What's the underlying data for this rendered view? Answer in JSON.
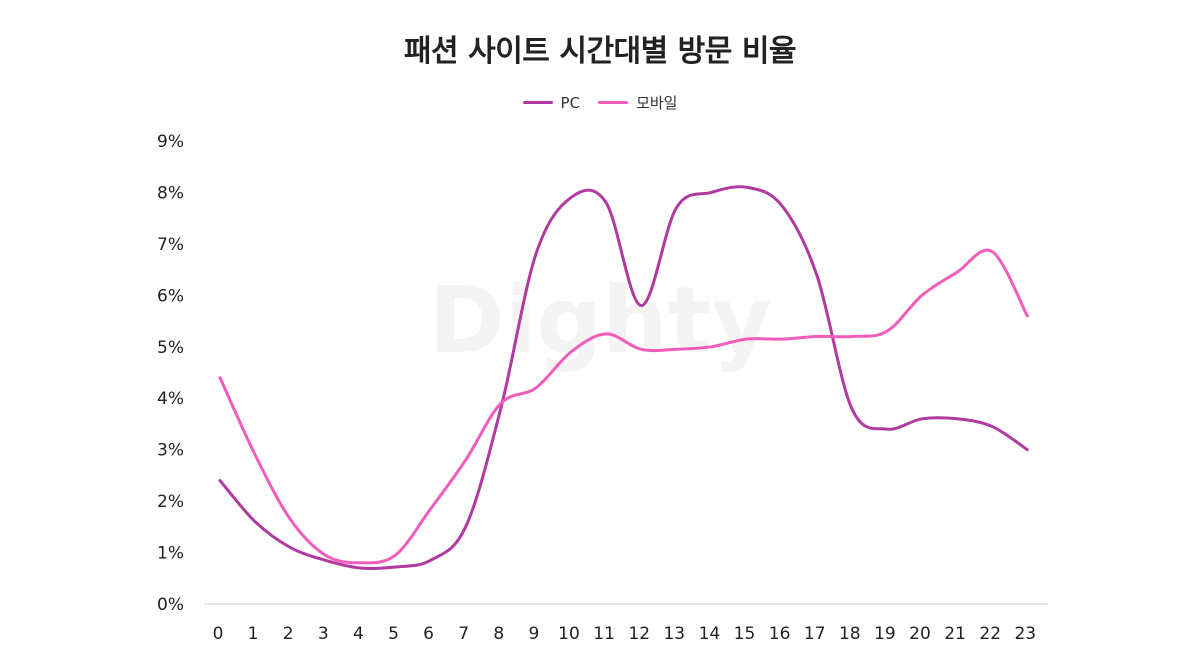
{
  "watermark": "Dighty",
  "chart_data": {
    "type": "line",
    "title": "패션 사이트 시간대별 방문 비율",
    "categories": [
      "0",
      "1",
      "2",
      "3",
      "4",
      "5",
      "6",
      "7",
      "8",
      "9",
      "10",
      "11",
      "12",
      "13",
      "14",
      "15",
      "16",
      "17",
      "18",
      "19",
      "20",
      "21",
      "22",
      "23"
    ],
    "y_ticks": [
      "0%",
      "1%",
      "2%",
      "3%",
      "4%",
      "5%",
      "6%",
      "7%",
      "8%",
      "9%"
    ],
    "ylim": [
      0,
      9
    ],
    "grid": false,
    "legend_position": "top",
    "series": [
      {
        "name": "PC",
        "color": "#b03a9f",
        "values": [
          2.4,
          1.6,
          1.1,
          0.85,
          0.7,
          0.72,
          0.85,
          1.5,
          3.8,
          6.8,
          7.9,
          7.8,
          5.8,
          7.7,
          8.0,
          8.1,
          7.75,
          6.4,
          3.8,
          3.4,
          3.6,
          3.6,
          3.45,
          3.0
        ]
      },
      {
        "name": "모바일",
        "color": "#f25cbb",
        "values": [
          4.4,
          2.9,
          1.65,
          0.95,
          0.8,
          0.95,
          1.85,
          2.8,
          3.9,
          4.2,
          4.9,
          5.25,
          4.95,
          4.95,
          5.0,
          5.15,
          5.15,
          5.2,
          5.2,
          5.3,
          6.0,
          6.45,
          6.85,
          5.6
        ]
      }
    ]
  }
}
